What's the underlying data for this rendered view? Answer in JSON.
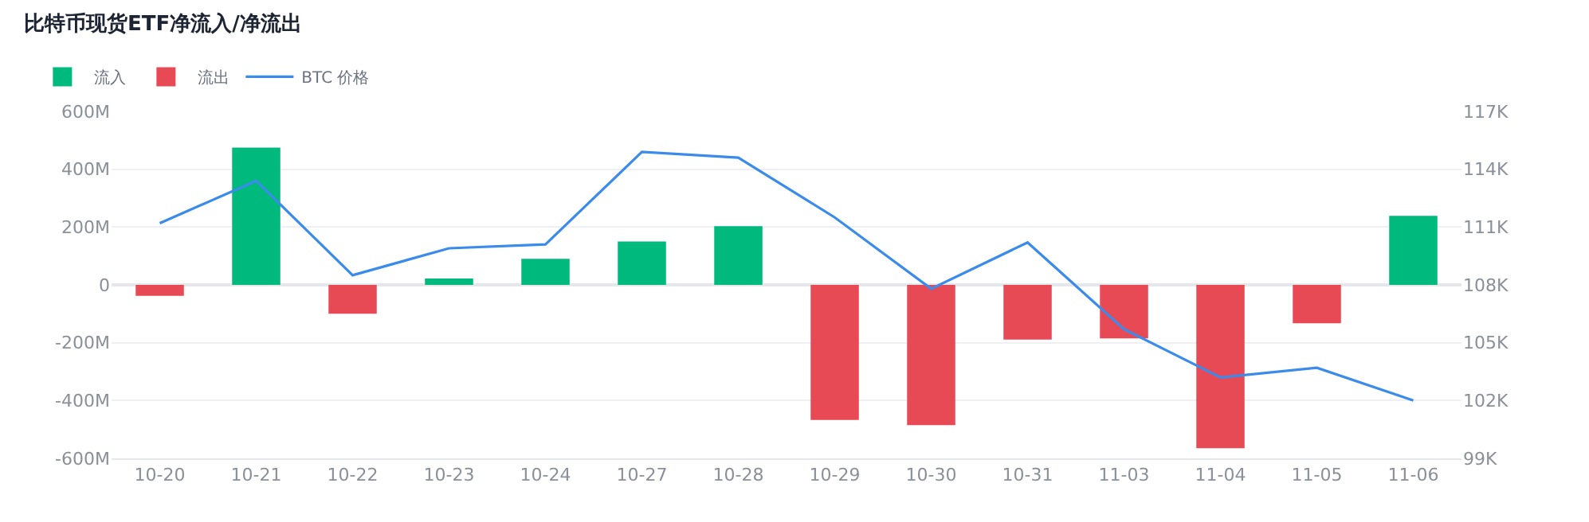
{
  "chart_data": {
    "type": "bar",
    "title": "比特币现货ETF净流入/净流出",
    "categories": [
      "10-20",
      "10-21",
      "10-22",
      "10-23",
      "10-24",
      "10-27",
      "10-28",
      "10-29",
      "10-30",
      "10-31",
      "11-03",
      "11-04",
      "11-05",
      "11-06"
    ],
    "series": [
      {
        "name": "流入",
        "color": "#00b97d",
        "values": [
          null,
          475,
          null,
          22,
          90,
          150,
          203,
          null,
          null,
          null,
          null,
          null,
          null,
          239
        ]
      },
      {
        "name": "流出",
        "color": "#e84a55",
        "values": [
          -38,
          null,
          -100,
          null,
          null,
          null,
          null,
          -467,
          -485,
          -189,
          -185,
          -565,
          -133,
          null
        ]
      },
      {
        "name": "BTC 价格",
        "type": "line",
        "axis": "y2",
        "color": "#3b8beb",
        "values": [
          111.2,
          113.4,
          108.5,
          109.9,
          110.1,
          114.9,
          114.6,
          111.5,
          107.8,
          110.2,
          105.7,
          103.2,
          103.7,
          102.0
        ]
      }
    ],
    "ylim": [
      -600,
      600
    ],
    "yticks": [
      {
        "value": -600,
        "label": "-600M"
      },
      {
        "value": -400,
        "label": "-400M"
      },
      {
        "value": -200,
        "label": "-200M"
      },
      {
        "value": 0,
        "label": "0"
      },
      {
        "value": 200,
        "label": "200M"
      },
      {
        "value": 400,
        "label": "400M"
      },
      {
        "value": 600,
        "label": "600M"
      }
    ],
    "y2lim": [
      99,
      117
    ],
    "y2ticks": [
      {
        "value": 99,
        "label": "99K"
      },
      {
        "value": 102,
        "label": "102K"
      },
      {
        "value": 105,
        "label": "105K"
      },
      {
        "value": 108,
        "label": "108K"
      },
      {
        "value": 111,
        "label": "111K"
      },
      {
        "value": 114,
        "label": "114K"
      },
      {
        "value": 117,
        "label": "117K"
      }
    ],
    "grid": "y",
    "legend": "top left",
    "marker": "none",
    "line_style": "solid"
  }
}
